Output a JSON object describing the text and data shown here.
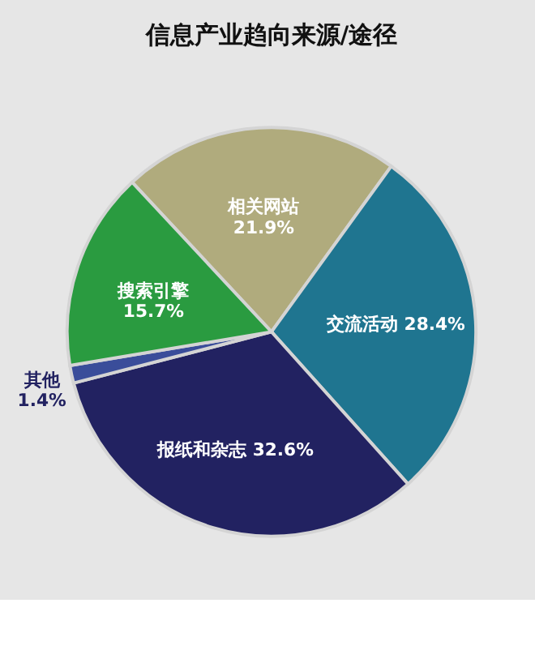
{
  "chart_data": {
    "type": "pie",
    "title": "信息产业趋向来源/途径",
    "categories": [
      "相关网站",
      "交流活动",
      "报纸和杂志",
      "其他",
      "搜索引擎"
    ],
    "values": [
      21.9,
      28.4,
      32.6,
      1.4,
      15.7
    ],
    "value_labels": [
      "21.9%",
      "28.4%",
      "32.6%",
      "1.4%",
      "15.7%"
    ],
    "colors": [
      "#b0ab7d",
      "#1f7590",
      "#222261",
      "#3a4d9a",
      "#2a9b40"
    ],
    "legend": false
  }
}
